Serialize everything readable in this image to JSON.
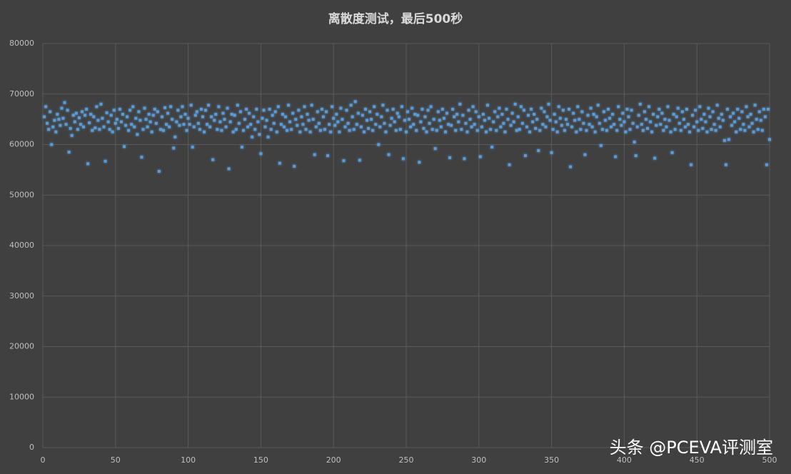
{
  "chart_data": {
    "type": "scatter",
    "title": "离散度测试，最后500秒",
    "watermark": "头条 @PCEVA评测室",
    "color": "#5b9bd5",
    "grid": true,
    "xlim": [
      0,
      500
    ],
    "xticks": [
      0,
      50,
      100,
      150,
      200,
      250,
      300,
      350,
      400,
      450,
      500
    ],
    "ylim": [
      0,
      80000
    ],
    "yticks": [
      0,
      10000,
      20000,
      30000,
      40000,
      50000,
      60000,
      70000,
      80000
    ],
    "x": [
      1,
      2,
      3,
      4,
      5,
      6,
      7,
      8,
      9,
      10,
      11,
      12,
      13,
      14,
      15,
      16,
      17,
      18,
      19,
      20,
      21,
      22,
      23,
      24,
      25,
      26,
      27,
      28,
      29,
      30,
      31,
      32,
      33,
      34,
      35,
      36,
      37,
      38,
      39,
      40,
      41,
      42,
      43,
      44,
      45,
      46,
      47,
      48,
      49,
      50,
      51,
      52,
      53,
      54,
      55,
      56,
      57,
      58,
      59,
      60,
      61,
      62,
      63,
      64,
      65,
      66,
      67,
      68,
      69,
      70,
      71,
      72,
      73,
      74,
      75,
      76,
      77,
      78,
      79,
      80,
      81,
      82,
      83,
      84,
      85,
      86,
      87,
      88,
      89,
      90,
      91,
      92,
      93,
      94,
      95,
      96,
      97,
      98,
      99,
      100,
      101,
      102,
      103,
      104,
      105,
      106,
      107,
      108,
      109,
      110,
      111,
      112,
      113,
      114,
      115,
      116,
      117,
      118,
      119,
      120,
      121,
      122,
      123,
      124,
      125,
      126,
      127,
      128,
      129,
      130,
      131,
      132,
      133,
      134,
      135,
      136,
      137,
      138,
      139,
      140,
      141,
      142,
      143,
      144,
      145,
      146,
      147,
      148,
      149,
      150,
      151,
      152,
      153,
      154,
      155,
      156,
      157,
      158,
      159,
      160,
      161,
      162,
      163,
      164,
      165,
      166,
      167,
      168,
      169,
      170,
      171,
      172,
      173,
      174,
      175,
      176,
      177,
      178,
      179,
      180,
      181,
      182,
      183,
      184,
      185,
      186,
      187,
      188,
      189,
      190,
      191,
      192,
      193,
      194,
      195,
      196,
      197,
      198,
      199,
      200,
      201,
      202,
      203,
      204,
      205,
      206,
      207,
      208,
      209,
      210,
      211,
      212,
      213,
      214,
      215,
      216,
      217,
      218,
      219,
      220,
      221,
      222,
      223,
      224,
      225,
      226,
      227,
      228,
      229,
      230,
      231,
      232,
      233,
      234,
      235,
      236,
      237,
      238,
      239,
      240,
      241,
      242,
      243,
      244,
      245,
      246,
      247,
      248,
      249,
      250,
      251,
      252,
      253,
      254,
      255,
      256,
      257,
      258,
      259,
      260,
      261,
      262,
      263,
      264,
      265,
      266,
      267,
      268,
      269,
      270,
      271,
      272,
      273,
      274,
      275,
      276,
      277,
      278,
      279,
      280,
      281,
      282,
      283,
      284,
      285,
      286,
      287,
      288,
      289,
      290,
      291,
      292,
      293,
      294,
      295,
      296,
      297,
      298,
      299,
      300,
      301,
      302,
      303,
      304,
      305,
      306,
      307,
      308,
      309,
      310,
      311,
      312,
      313,
      314,
      315,
      316,
      317,
      318,
      319,
      320,
      321,
      322,
      323,
      324,
      325,
      326,
      327,
      328,
      329,
      330,
      331,
      332,
      333,
      334,
      335,
      336,
      337,
      338,
      339,
      340,
      341,
      342,
      343,
      344,
      345,
      346,
      347,
      348,
      349,
      350,
      351,
      352,
      353,
      354,
      355,
      356,
      357,
      358,
      359,
      360,
      361,
      362,
      363,
      364,
      365,
      366,
      367,
      368,
      369,
      370,
      371,
      372,
      373,
      374,
      375,
      376,
      377,
      378,
      379,
      380,
      381,
      382,
      383,
      384,
      385,
      386,
      387,
      388,
      389,
      390,
      391,
      392,
      393,
      394,
      395,
      396,
      397,
      398,
      399,
      400,
      401,
      402,
      403,
      404,
      405,
      406,
      407,
      408,
      409,
      410,
      411,
      412,
      413,
      414,
      415,
      416,
      417,
      418,
      419,
      420,
      421,
      422,
      423,
      424,
      425,
      426,
      427,
      428,
      429,
      430,
      431,
      432,
      433,
      434,
      435,
      436,
      437,
      438,
      439,
      440,
      441,
      442,
      443,
      444,
      445,
      446,
      447,
      448,
      449,
      450,
      451,
      452,
      453,
      454,
      455,
      456,
      457,
      458,
      459,
      460,
      461,
      462,
      463,
      464,
      465,
      466,
      467,
      468,
      469,
      470,
      471,
      472,
      473,
      474,
      475,
      476,
      477,
      478,
      479,
      480,
      481,
      482,
      483,
      484,
      485,
      486,
      487,
      488,
      489,
      490,
      491,
      492,
      493,
      494,
      495,
      496,
      497,
      498,
      499,
      500
    ],
    "values": [
      65500,
      67500,
      64200,
      63000,
      66500,
      60000,
      63500,
      64800,
      62500,
      66000,
      65000,
      63800,
      67200,
      65200,
      68300,
      64000,
      66800,
      58500,
      63200,
      61800,
      65800,
      64500,
      66200,
      63000,
      65300,
      64000,
      66500,
      63500,
      65800,
      67000,
      56200,
      64300,
      66000,
      62800,
      65500,
      63300,
      67500,
      64800,
      63000,
      68000,
      65200,
      63500,
      56700,
      66300,
      64500,
      63000,
      65800,
      62500,
      66800,
      64200,
      65000,
      63200,
      67000,
      64500,
      66000,
      59600,
      63800,
      65500,
      62800,
      66800,
      64000,
      67500,
      63500,
      65200,
      62000,
      66500,
      64800,
      57500,
      63000,
      67200,
      65000,
      63500,
      66000,
      64500,
      62500,
      65800,
      67000,
      64200,
      66500,
      54700,
      63000,
      65500,
      62800,
      67300,
      64000,
      66200,
      63500,
      67500,
      65000,
      59300,
      61500,
      64500,
      66800,
      63800,
      65500,
      67500,
      64000,
      66000,
      62800,
      65200,
      64000,
      67800,
      59500,
      63500,
      65800,
      66500,
      64200,
      63000,
      67000,
      65500,
      62500,
      66800,
      64000,
      67800,
      63500,
      65500,
      57000,
      64800,
      66000,
      63000,
      67500,
      64500,
      62800,
      66200,
      65000,
      63500,
      67200,
      55200,
      64500,
      66000,
      62500,
      65800,
      63000,
      67800,
      64200,
      66500,
      59500,
      62800,
      65000,
      67000,
      63500,
      66200,
      64000,
      61500,
      65500,
      63000,
      67000,
      64500,
      62000,
      58200,
      65200,
      66800,
      63500,
      64800,
      61500,
      67000,
      63000,
      65800,
      64200,
      66500,
      62500,
      67500,
      56300,
      64000,
      66000,
      63500,
      65500,
      62800,
      67800,
      64500,
      63000,
      66200,
      55700,
      65000,
      63800,
      66800,
      62500,
      65500,
      64000,
      67500,
      63000,
      66000,
      64800,
      62500,
      67800,
      65000,
      58000,
      63500,
      66500,
      64200,
      62800,
      67000,
      65500,
      63000,
      66500,
      57800,
      64000,
      62500,
      67500,
      65200,
      63800,
      66000,
      64500,
      62500,
      67200,
      65000,
      56800,
      63500,
      66800,
      64200,
      62800,
      67800,
      65500,
      63000,
      68500,
      64000,
      66200,
      56900,
      63500,
      65800,
      62500,
      67000,
      64800,
      63200,
      66500,
      65000,
      62800,
      67500,
      64000,
      66000,
      60000,
      63500,
      65500,
      67800,
      64200,
      62500,
      66800,
      58000,
      63800,
      65200,
      67000,
      64500,
      62800,
      66200,
      65500,
      63000,
      67500,
      57200,
      64800,
      62500,
      66500,
      65000,
      63500,
      67200,
      64000,
      66000,
      62800,
      65800,
      56500,
      64500,
      67000,
      63200,
      65500,
      62500,
      66800,
      64200,
      67500,
      63000,
      65000,
      59200,
      62800,
      66500,
      64800,
      63500,
      67000,
      65200,
      62500,
      66200,
      64000,
      57400,
      63800,
      67000,
      65500,
      62800,
      66000,
      64500,
      68000,
      63000,
      65800,
      57200,
      64200,
      62500,
      66800,
      65000,
      63500,
      67500,
      64000,
      66500,
      62800,
      65500,
      57600,
      63500,
      66000,
      64800,
      62500,
      67800,
      65200,
      63000,
      59500,
      64500,
      66500,
      62800,
      65500,
      67200,
      63500,
      66000,
      64200,
      62500,
      67000,
      65000,
      56000,
      63800,
      66200,
      64500,
      68000,
      62800,
      65500,
      63000,
      67500,
      64200,
      66800,
      57800,
      63500,
      65800,
      62500,
      67000,
      64500,
      66000,
      63200,
      65000,
      58800,
      62800,
      67200,
      64000,
      66500,
      63500,
      65500,
      68000,
      64800,
      58400,
      63000,
      66000,
      64500,
      62500,
      67500,
      65200,
      63800,
      66800,
      62800,
      65000,
      64000,
      67000,
      55600,
      63500,
      66200,
      64800,
      62500,
      67500,
      65000,
      63000,
      66500,
      64200,
      58000,
      62800,
      65800,
      64000,
      67200,
      63500,
      66000,
      62500,
      65500,
      67800,
      64200,
      59800,
      63000,
      66500,
      64800,
      62800,
      67000,
      65200,
      63500,
      66000,
      64000,
      57600,
      62800,
      67500,
      65000,
      63800,
      66200,
      64500,
      62500,
      67000,
      65500,
      63000,
      66800,
      64200,
      60500,
      57800,
      63500,
      65800,
      68000,
      64000,
      62800,
      66500,
      65000,
      63200,
      67500,
      64500,
      62500,
      66000,
      57300,
      63800,
      65500,
      67000,
      64000,
      66200,
      62800,
      65000,
      63500,
      67500,
      64800,
      62500,
      58400,
      66000,
      63000,
      65500,
      67200,
      64200,
      62800,
      66500,
      65000,
      63500,
      67000,
      64000,
      62500,
      56000,
      65800,
      63500,
      66800,
      64500,
      62800,
      67500,
      65000,
      63200,
      66000,
      64500,
      62500,
      67200,
      65500,
      63000,
      66500,
      64000,
      62800,
      67800,
      65200,
      63500,
      66000,
      64800,
      60800,
      56000,
      67000,
      61000,
      65500,
      63800,
      66200,
      64500,
      62500,
      67000,
      65200,
      63000,
      66500,
      64000,
      62800,
      67500,
      65500,
      63500,
      66000,
      64200,
      62500,
      67800,
      65000,
      63000,
      66500,
      64800,
      62800,
      67000,
      65500,
      56000,
      67000,
      61000
    ]
  }
}
